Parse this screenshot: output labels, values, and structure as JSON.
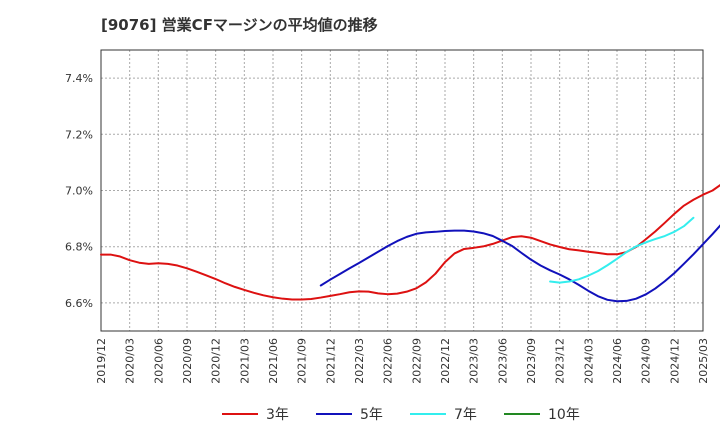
{
  "chart_data": {
    "type": "line",
    "title": "[9076]  営業CFマージンの平均値の推移",
    "xlabel": "",
    "ylabel": "",
    "ylim": [
      6.5,
      7.5
    ],
    "yticks": [
      6.6,
      6.8,
      7.0,
      7.2,
      7.4
    ],
    "ytick_labels": [
      "6.6%",
      "6.8%",
      "7.0%",
      "7.2%",
      "7.4%"
    ],
    "x_labels": [
      "2019/12",
      "2020/03",
      "2020/06",
      "2020/09",
      "2020/12",
      "2021/03",
      "2021/06",
      "2021/09",
      "2021/12",
      "2022/03",
      "2022/06",
      "2022/09",
      "2022/12",
      "2023/03",
      "2023/06",
      "2023/09",
      "2023/12",
      "2024/03",
      "2024/06",
      "2024/09",
      "2024/12",
      "2025/03"
    ],
    "grid": true,
    "legend_position": "bottom",
    "series": [
      {
        "name": "3年",
        "color": "#dd1111",
        "start_month": "2019/12",
        "values": [
          6.772,
          6.772,
          6.765,
          6.752,
          6.743,
          6.739,
          6.741,
          6.739,
          6.733,
          6.723,
          6.711,
          6.698,
          6.685,
          6.67,
          6.657,
          6.646,
          6.636,
          6.627,
          6.62,
          6.615,
          6.612,
          6.612,
          6.614,
          6.619,
          6.625,
          6.631,
          6.638,
          6.641,
          6.64,
          6.634,
          6.631,
          6.633,
          6.64,
          6.652,
          6.673,
          6.704,
          6.745,
          6.776,
          6.792,
          6.796,
          6.801,
          6.81,
          6.822,
          6.834,
          6.837,
          6.832,
          6.82,
          6.808,
          6.799,
          6.791,
          6.787,
          6.782,
          6.778,
          6.773,
          6.773,
          6.781,
          6.799,
          6.826,
          6.854,
          6.885,
          6.917,
          6.946,
          6.967,
          6.985,
          7.0,
          7.024,
          7.057,
          7.1
        ]
      },
      {
        "name": "5年",
        "color": "#1111bb",
        "start_month": "2021/11",
        "values": [
          6.662,
          6.683,
          6.703,
          6.723,
          6.742,
          6.762,
          6.782,
          6.802,
          6.82,
          6.835,
          6.846,
          6.851,
          6.853,
          6.856,
          6.857,
          6.857,
          6.854,
          6.848,
          6.838,
          6.821,
          6.803,
          6.778,
          6.754,
          6.733,
          6.716,
          6.701,
          6.684,
          6.664,
          6.643,
          6.624,
          6.611,
          6.606,
          6.607,
          6.615,
          6.63,
          6.651,
          6.677,
          6.706,
          6.739,
          6.773,
          6.809,
          6.845,
          6.883
        ]
      },
      {
        "name": "7年",
        "color": "#33eeee",
        "start_month": "2023/11",
        "values": [
          6.676,
          6.672,
          6.676,
          6.684,
          6.697,
          6.713,
          6.734,
          6.757,
          6.781,
          6.801,
          6.815,
          6.827,
          6.838,
          6.853,
          6.873,
          6.903
        ]
      },
      {
        "name": "10年",
        "color": "#228822",
        "start_month": "2024/12",
        "values": []
      }
    ]
  }
}
